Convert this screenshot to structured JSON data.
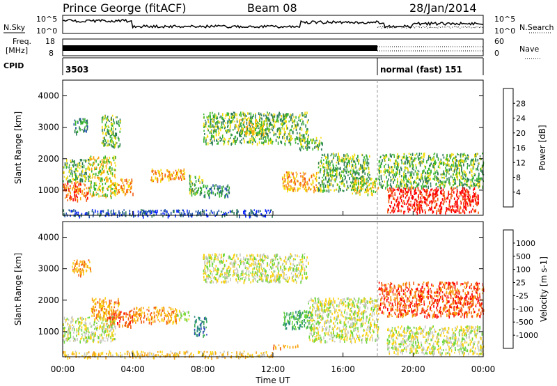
{
  "header": {
    "station": "Prince George (fitACF)",
    "beam": "Beam 08",
    "date": "28/Jan/2014"
  },
  "noise_panel": {
    "left_label": "N.Sky",
    "right_label": "N.Search",
    "left_ticks": [
      "10^5",
      "10^0"
    ],
    "right_ticks": [
      "10^5",
      "10^0"
    ]
  },
  "freq_panel": {
    "left_label_1": "Freq.",
    "left_label_2": "[MHz]",
    "right_label": "Nave",
    "left_ticks": [
      "18",
      "8"
    ],
    "right_ticks": [
      "60",
      "0"
    ]
  },
  "cpid_panel": {
    "label": "CPID",
    "program_1": "3503",
    "program_2": "normal (fast) 151"
  },
  "chart_data": [
    {
      "type": "heatmap",
      "title": "",
      "xlabel": "",
      "ylabel": "Slant Range [km]",
      "yticks": [
        "1000",
        "2000",
        "3000",
        "4000"
      ],
      "ylim": [
        200,
        4500
      ],
      "xlim": [
        0,
        24
      ],
      "colorbar": {
        "label": "Power [dB]",
        "ticks": [
          "4",
          "8",
          "12",
          "16",
          "20",
          "24",
          "28"
        ],
        "colors": [
          "#0a23ff",
          "#1f4fa8",
          "#2e7a57",
          "#37b52f",
          "#f2dd0c",
          "#f9a20e",
          "#f25a0f",
          "#ff0000"
        ]
      },
      "regions": [
        {
          "t0": 0.0,
          "t1": 1.5,
          "r0": 700,
          "r1": 1300,
          "level": 6
        },
        {
          "t0": 0.0,
          "t1": 1.5,
          "r0": 1300,
          "r1": 2000,
          "level": 3
        },
        {
          "t0": 0.6,
          "t1": 1.4,
          "r0": 2800,
          "r1": 3300,
          "level": 2
        },
        {
          "t0": 1.5,
          "t1": 3.0,
          "r0": 800,
          "r1": 2100,
          "level": 4
        },
        {
          "t0": 2.2,
          "t1": 3.3,
          "r0": 2400,
          "r1": 3400,
          "level": 3
        },
        {
          "t0": 3.0,
          "t1": 4.0,
          "r0": 900,
          "r1": 1400,
          "level": 5
        },
        {
          "t0": 5.0,
          "t1": 7.0,
          "r0": 1300,
          "r1": 1700,
          "level": 5
        },
        {
          "t0": 7.2,
          "t1": 8.0,
          "r0": 900,
          "r1": 1500,
          "level": 3
        },
        {
          "t0": 8.0,
          "t1": 9.5,
          "r0": 800,
          "r1": 1200,
          "level": 2
        },
        {
          "t0": 8.0,
          "t1": 14.0,
          "r0": 2500,
          "r1": 3500,
          "level": 3
        },
        {
          "t0": 10.0,
          "t1": 11.5,
          "r0": 2800,
          "r1": 3300,
          "level": 4
        },
        {
          "t0": 12.5,
          "t1": 14.5,
          "r0": 1000,
          "r1": 1600,
          "level": 5
        },
        {
          "t0": 13.5,
          "t1": 14.8,
          "r0": 2300,
          "r1": 2700,
          "level": 3
        },
        {
          "t0": 14.5,
          "t1": 17.5,
          "r0": 1000,
          "r1": 2200,
          "level": 3
        },
        {
          "t0": 16.5,
          "t1": 18.0,
          "r0": 900,
          "r1": 1400,
          "level": 4
        },
        {
          "t0": 18.0,
          "t1": 24.0,
          "r0": 1100,
          "r1": 2200,
          "level": 3
        },
        {
          "t0": 18.5,
          "t1": 23.7,
          "r0": 300,
          "r1": 1100,
          "level": 7
        },
        {
          "t0": 0.0,
          "t1": 12.0,
          "r0": 200,
          "r1": 400,
          "level": 1
        }
      ]
    },
    {
      "type": "heatmap",
      "title": "",
      "xlabel": "Time UT",
      "ylabel": "Slant Range [km]",
      "xticks": [
        "00:00",
        "04:00",
        "08:00",
        "12:00",
        "16:00",
        "20:00",
        "00:00"
      ],
      "yticks": [
        "1000",
        "2000",
        "3000",
        "4000"
      ],
      "ylim": [
        200,
        4500
      ],
      "xlim": [
        0,
        24
      ],
      "colorbar": {
        "label": "Velocity [m s-1]",
        "ticks": [
          "1000",
          "500",
          "100",
          "25",
          "-25",
          "-100",
          "-500",
          "-1000"
        ],
        "colors": [
          "#2b3fb8",
          "#2d8a86",
          "#33a853",
          "#6bd639",
          "#c8c8c0",
          "#f9d10e",
          "#f9a20e",
          "#f25a0f",
          "#ff0000"
        ]
      },
      "regions": [
        {
          "t0": 0.0,
          "t1": 3.0,
          "r0": 700,
          "r1": 1500,
          "level": 4
        },
        {
          "t0": 0.5,
          "t1": 1.6,
          "r0": 2800,
          "r1": 3300,
          "level": 6
        },
        {
          "t0": 1.6,
          "t1": 3.2,
          "r0": 1400,
          "r1": 2100,
          "level": 6
        },
        {
          "t0": 2.5,
          "t1": 4.0,
          "r0": 1200,
          "r1": 1700,
          "level": 7
        },
        {
          "t0": 4.0,
          "t1": 6.5,
          "r0": 1300,
          "r1": 1800,
          "level": 6
        },
        {
          "t0": 6.5,
          "t1": 7.2,
          "r0": 1400,
          "r1": 1700,
          "level": 4
        },
        {
          "t0": 7.5,
          "t1": 8.2,
          "r0": 900,
          "r1": 1500,
          "level": 1
        },
        {
          "t0": 8.0,
          "t1": 14.0,
          "r0": 2600,
          "r1": 3500,
          "level": 4
        },
        {
          "t0": 12.5,
          "t1": 14.2,
          "r0": 1100,
          "r1": 1700,
          "level": 2
        },
        {
          "t0": 12.0,
          "t1": 13.5,
          "r0": 500,
          "r1": 600,
          "level": 6
        },
        {
          "t0": 14.0,
          "t1": 18.0,
          "r0": 700,
          "r1": 2100,
          "level": 4
        },
        {
          "t0": 18.0,
          "t1": 24.0,
          "r0": 1500,
          "r1": 2600,
          "level": 7
        },
        {
          "t0": 18.5,
          "t1": 24.0,
          "r0": 300,
          "r1": 1200,
          "level": 4
        },
        {
          "t0": 0.0,
          "t1": 12.0,
          "r0": 200,
          "r1": 400,
          "level": 5
        }
      ]
    }
  ]
}
